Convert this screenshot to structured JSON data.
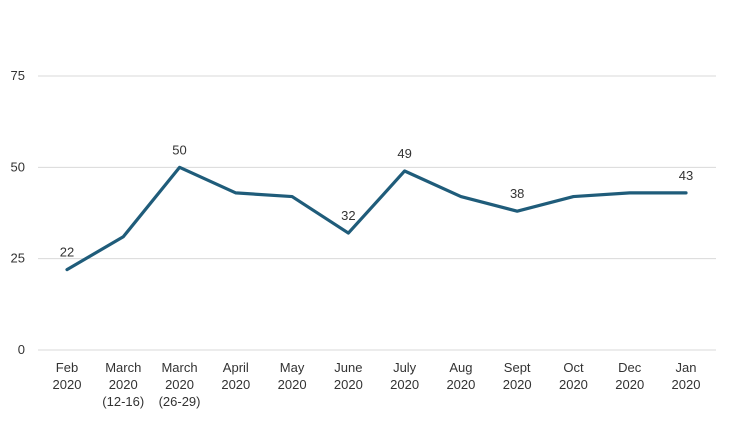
{
  "chart_data": {
    "type": "line",
    "categories": [
      [
        "Feb",
        "2020"
      ],
      [
        "March",
        "2020",
        "(12-16)"
      ],
      [
        "March",
        "2020",
        "(26-29)"
      ],
      [
        "April",
        "2020"
      ],
      [
        "May",
        "2020"
      ],
      [
        "June",
        "2020"
      ],
      [
        "July",
        "2020"
      ],
      [
        "Aug",
        "2020"
      ],
      [
        "Sept",
        "2020"
      ],
      [
        "Oct",
        "2020"
      ],
      [
        "Dec",
        "2020"
      ],
      [
        "Jan",
        "2020"
      ]
    ],
    "series": [
      {
        "values": [
          22,
          31,
          50,
          43,
          42,
          32,
          49,
          42,
          38,
          42,
          43,
          43
        ],
        "color": "#1f5c7a",
        "labels": [
          "22",
          "",
          "50",
          "",
          "",
          "32",
          "49",
          "",
          "38",
          "",
          "",
          "43"
        ]
      }
    ],
    "yticks": [
      "0",
      "25",
      "50",
      "75"
    ],
    "ylim": [
      0,
      75
    ],
    "grid": true,
    "title": "",
    "xlabel": "",
    "ylabel": ""
  }
}
